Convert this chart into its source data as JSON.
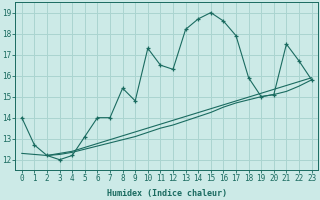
{
  "xlabel": "Humidex (Indice chaleur)",
  "ylabel": "",
  "background_color": "#cceae7",
  "grid_color": "#aad4d0",
  "line_color": "#1a6b60",
  "xlim": [
    -0.5,
    23.5
  ],
  "ylim": [
    11.5,
    19.5
  ],
  "xticks": [
    0,
    1,
    2,
    3,
    4,
    5,
    6,
    7,
    8,
    9,
    10,
    11,
    12,
    13,
    14,
    15,
    16,
    17,
    18,
    19,
    20,
    21,
    22,
    23
  ],
  "yticks": [
    12,
    13,
    14,
    15,
    16,
    17,
    18,
    19
  ],
  "line1_x": [
    0,
    1,
    2,
    3,
    4,
    5,
    6,
    7,
    8,
    9,
    10,
    11,
    12,
    13,
    14,
    15,
    16,
    17,
    18,
    19,
    20,
    21,
    22,
    23
  ],
  "line1_y": [
    14.0,
    12.7,
    12.2,
    12.0,
    12.2,
    13.1,
    14.0,
    14.0,
    15.4,
    14.8,
    17.3,
    16.5,
    16.3,
    18.2,
    18.7,
    19.0,
    18.6,
    17.9,
    15.9,
    15.0,
    15.1,
    17.5,
    16.7,
    15.8
  ],
  "line2_x": [
    0,
    2,
    3,
    4,
    5,
    6,
    7,
    8,
    9,
    10,
    11,
    12,
    13,
    14,
    15,
    16,
    17,
    18,
    19,
    20,
    21,
    22,
    23
  ],
  "line2_y": [
    12.3,
    12.2,
    12.25,
    12.35,
    12.5,
    12.65,
    12.8,
    12.95,
    13.1,
    13.3,
    13.5,
    13.65,
    13.85,
    14.05,
    14.25,
    14.5,
    14.7,
    14.85,
    15.0,
    15.1,
    15.25,
    15.5,
    15.8
  ],
  "line3_x": [
    2,
    3,
    4,
    23
  ],
  "line3_y": [
    12.2,
    12.3,
    12.4,
    15.9
  ]
}
